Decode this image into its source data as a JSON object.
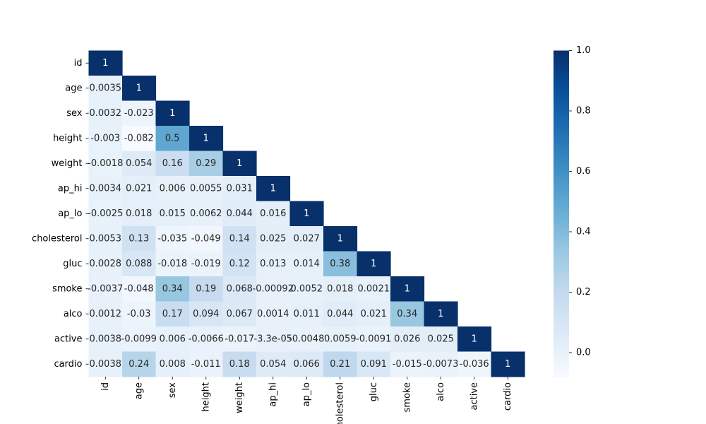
{
  "chart_data": {
    "type": "heatmap",
    "title": "",
    "xlabel": "",
    "ylabel": "",
    "labels": [
      "id",
      "age",
      "sex",
      "height",
      "weight",
      "ap_hi",
      "ap_lo",
      "cholesterol",
      "gluc",
      "smoke",
      "alco",
      "active",
      "cardio"
    ],
    "x_tick_labels": [
      "id",
      "age",
      "sex",
      "height",
      "weight",
      "ap_hi",
      "ap_lo",
      "cholesterol",
      "gluc",
      "smoke",
      "alco",
      "active",
      "cardio"
    ],
    "y_tick_labels": [
      "id",
      "age",
      "sex",
      "height",
      "weight",
      "ap_hi",
      "ap_lo",
      "cholesterol",
      "gluc",
      "smoke",
      "alco",
      "active",
      "cardio"
    ],
    "mask": "upper-triangle",
    "matrix": [
      [
        1
      ],
      [
        0.0035,
        1
      ],
      [
        0.0032,
        -0.023,
        1
      ],
      [
        -0.003,
        -0.082,
        0.5,
        1
      ],
      [
        -0.0018,
        0.054,
        0.16,
        0.29,
        1
      ],
      [
        0.0034,
        0.021,
        0.006,
        0.0055,
        0.031,
        1
      ],
      [
        -0.0025,
        0.018,
        0.015,
        0.0062,
        0.044,
        0.016,
        1
      ],
      [
        0.0053,
        0.13,
        -0.035,
        -0.049,
        0.14,
        0.025,
        0.027,
        1
      ],
      [
        0.0028,
        0.088,
        -0.018,
        -0.019,
        0.12,
        0.013,
        0.014,
        0.38,
        1
      ],
      [
        -0.0037,
        -0.048,
        0.34,
        0.19,
        0.068,
        -0.00092,
        0.0052,
        0.018,
        0.0021,
        1
      ],
      [
        0.0012,
        -0.03,
        0.17,
        0.094,
        0.067,
        0.0014,
        0.011,
        0.044,
        0.021,
        0.34,
        1
      ],
      [
        0.0038,
        -0.0099,
        0.006,
        -0.0066,
        -0.017,
        -3.3e-05,
        -0.0048,
        0.0059,
        -0.0091,
        0.026,
        0.025,
        1
      ],
      [
        0.0038,
        0.24,
        0.008,
        -0.011,
        0.18,
        0.054,
        0.066,
        0.21,
        0.091,
        -0.015,
        -0.0073,
        -0.036,
        1
      ]
    ],
    "annotations": [
      [
        "1"
      ],
      [
        "0.0035",
        "1"
      ],
      [
        "0.0032",
        "-0.023",
        "1"
      ],
      [
        "-0.003",
        "-0.082",
        "0.5",
        "1"
      ],
      [
        "-0.0018",
        "0.054",
        "0.16",
        "0.29",
        "1"
      ],
      [
        "0.0034",
        "0.021",
        "0.006",
        "0.0055",
        "0.031",
        "1"
      ],
      [
        "-0.0025",
        "0.018",
        "0.015",
        "0.0062",
        "0.044",
        "0.016",
        "1"
      ],
      [
        "0.0053",
        "0.13",
        "-0.035",
        "-0.049",
        "0.14",
        "0.025",
        "0.027",
        "1"
      ],
      [
        "0.0028",
        "0.088",
        "-0.018",
        "-0.019",
        "0.12",
        "0.013",
        "0.014",
        "0.38",
        "1"
      ],
      [
        "-0.0037",
        "-0.048",
        "0.34",
        "0.19",
        "0.068",
        "-0.00092",
        "0.0052",
        "0.018",
        "0.0021",
        "1"
      ],
      [
        "0.0012",
        "-0.03",
        "0.17",
        "0.094",
        "0.067",
        "0.0014",
        "0.011",
        "0.044",
        "0.021",
        "0.34",
        "1"
      ],
      [
        "0.0038",
        "-0.0099",
        "0.006",
        "-0.0066",
        "-0.017",
        "-3.3e-05",
        "-0.0048",
        "0.0059",
        "-0.0091",
        "0.026",
        "0.025",
        "1"
      ],
      [
        "0.0038",
        "0.24",
        "0.008",
        "-0.011",
        "0.18",
        "0.054",
        "0.066",
        "0.21",
        "0.091",
        "-0.015",
        "-0.0073",
        "-0.036",
        "1"
      ]
    ],
    "colormap": "Blues",
    "colorbar": {
      "range": [
        -0.082,
        1.0
      ],
      "ticks": [
        1.0,
        0.8,
        0.6,
        0.4,
        0.2,
        0.0
      ],
      "tick_labels": [
        "1.0",
        "0.8",
        "0.6",
        "0.4",
        "0.2",
        "0.0"
      ]
    },
    "colors": {
      "colormap_stops": [
        "#f7fbff",
        "#deebf7",
        "#c6dbef",
        "#9ecae1",
        "#6baed6",
        "#4292c6",
        "#2171b5",
        "#08519c",
        "#08306b"
      ],
      "dark_text": "#262626",
      "light_text": "#ffffff",
      "axis_text": "#000000"
    },
    "grid": false
  }
}
